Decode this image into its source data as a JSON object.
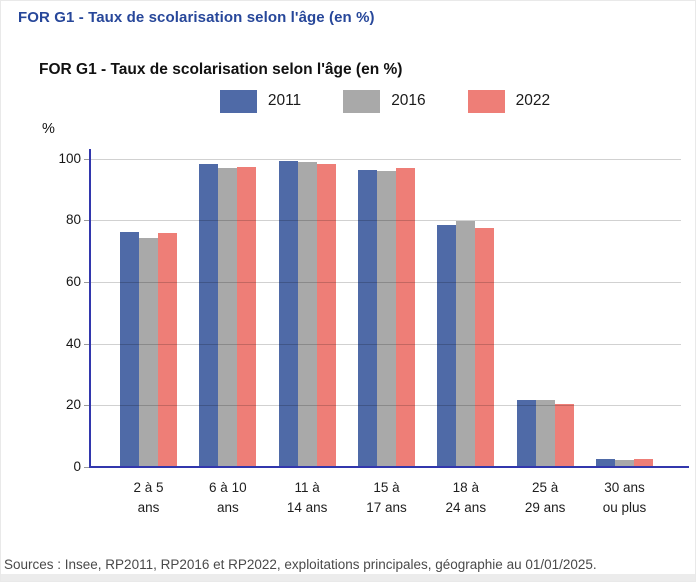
{
  "page": {
    "header_title": "FOR G1 - Taux de scolarisation selon l'âge (en %)",
    "footer_source": "Sources : Insee, RP2011, RP2016 et RP2022, exploitations principales, géographie au 01/01/2025."
  },
  "colors": {
    "header_blue": "#27479a",
    "axis_blue": "#3237ad",
    "series_2011": "#4f6aa7",
    "series_2016": "#a9a9a9",
    "series_2022": "#ee7e77",
    "gridline": "#d2d2d2"
  },
  "chart_data": {
    "type": "bar",
    "title": "FOR G1 - Taux de scolarisation selon l'âge (en %)",
    "ylabel": "%",
    "ylim": [
      0,
      100
    ],
    "yticks": [
      0,
      20,
      40,
      60,
      80,
      100
    ],
    "grid": true,
    "legend_position": "top-center",
    "categories": [
      "2 à 5 ans",
      "6 à 10 ans",
      "11 à 14 ans",
      "15 à 17 ans",
      "18 à 24 ans",
      "25 à 29 ans",
      "30 ans ou plus"
    ],
    "category_labels": [
      [
        "2 à 5",
        "ans"
      ],
      [
        "6 à 10",
        "ans"
      ],
      [
        "11 à",
        "14 ans"
      ],
      [
        "15 à",
        "17 ans"
      ],
      [
        "18 à",
        "24 ans"
      ],
      [
        "25 à",
        "29 ans"
      ],
      [
        "30 ans",
        "ou plus"
      ]
    ],
    "series": [
      {
        "name": "2011",
        "color": "#4f6aa7",
        "values": [
          76.0,
          98.0,
          99.0,
          96.0,
          78.0,
          21.5,
          2.3
        ]
      },
      {
        "name": "2016",
        "color": "#a9a9a9",
        "values": [
          74.0,
          96.5,
          98.5,
          95.5,
          79.5,
          21.3,
          2.0
        ]
      },
      {
        "name": "2022",
        "color": "#ee7e77",
        "values": [
          75.5,
          97.0,
          98.0,
          96.5,
          77.0,
          20.0,
          2.2
        ]
      }
    ]
  }
}
